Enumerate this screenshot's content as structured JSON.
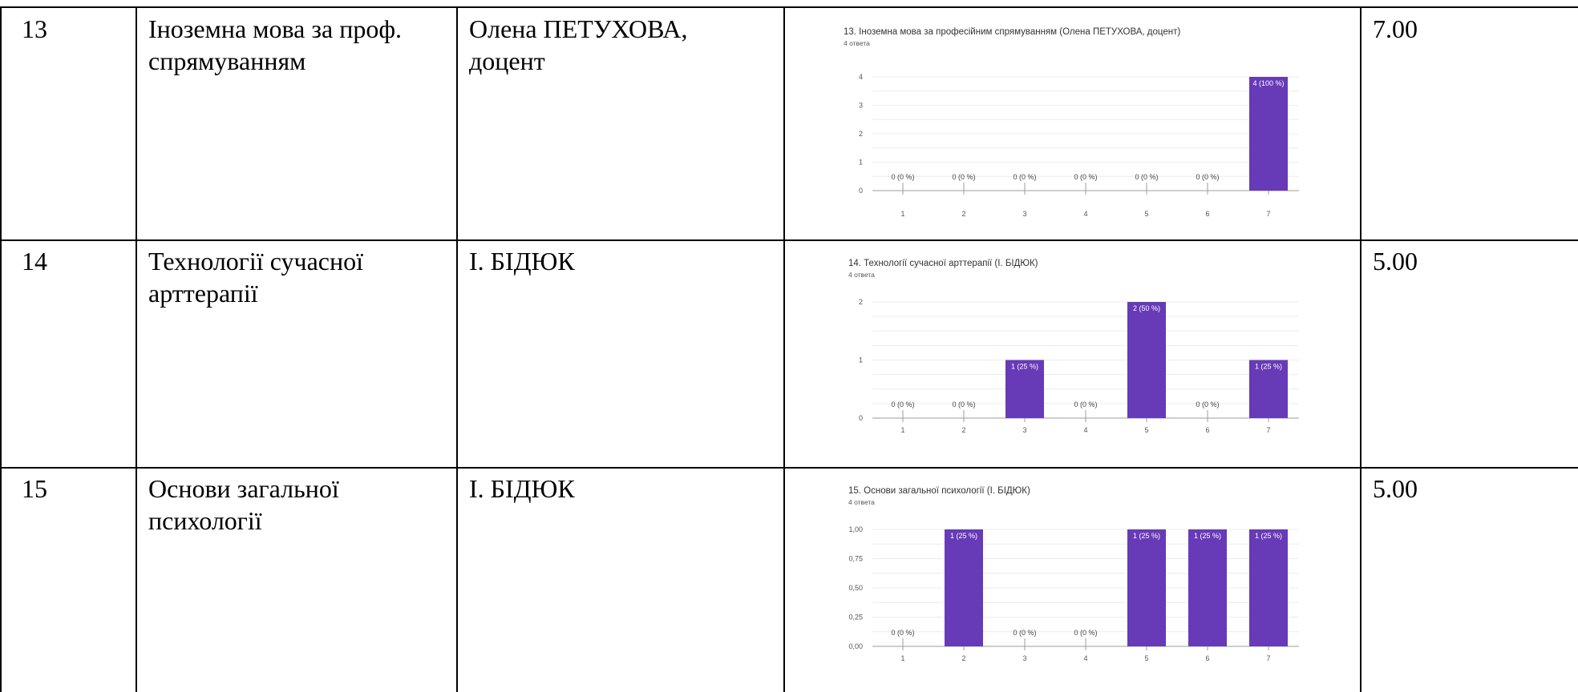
{
  "rows": [
    {
      "number": "13",
      "subject": "Іноземна мова за проф.\nспрямуванням",
      "teacher": "Олена ПЕТУХОВА,\nдоцент",
      "score": "7.00",
      "chart": {
        "title": "13. Іноземна мова за професійним спрямуванням (Олена ПЕТУХОВА, доцент)",
        "subtitle": "4 ответа",
        "yticks": [
          "0",
          "1",
          "2",
          "3",
          "4"
        ]
      }
    },
    {
      "number": "14",
      "subject": "Технології сучасної\nарттерапії",
      "teacher": "І. БІДЮК",
      "score": "5.00",
      "chart": {
        "title": "14. Технології сучасної арттерапії (І. БІДЮК)",
        "subtitle": "4 ответа",
        "yticks": [
          "0",
          "1",
          "2"
        ]
      }
    },
    {
      "number": "15",
      "subject": "Основи загальної\nпсихології",
      "teacher": "І. БІДЮК",
      "score": "5.00",
      "chart": {
        "title": "15. Основи загальної психології (І. БІДЮК)",
        "subtitle": "4 ответа",
        "yticks": [
          "0,00",
          "0,25",
          "0,50",
          "0,75",
          "1,00"
        ]
      }
    }
  ],
  "chart_data": [
    {
      "type": "bar",
      "title": "13. Іноземна мова за професійним спрямуванням (Олена ПЕТУХОВА, доцент)",
      "categories": [
        "1",
        "2",
        "3",
        "4",
        "5",
        "6",
        "7"
      ],
      "values": [
        0,
        0,
        0,
        0,
        0,
        0,
        4
      ],
      "data_labels": [
        "0 (0 %)",
        "0 (0 %)",
        "0 (0 %)",
        "0 (0 %)",
        "0 (0 %)",
        "0 (0 %)",
        "4 (100 %)"
      ],
      "ylim": [
        0,
        4
      ],
      "bar_color": "#673ab7",
      "grid": true
    },
    {
      "type": "bar",
      "title": "14. Технології сучасної арттерапії (І. БІДЮК)",
      "categories": [
        "1",
        "2",
        "3",
        "4",
        "5",
        "6",
        "7"
      ],
      "values": [
        0,
        0,
        1,
        0,
        2,
        0,
        1
      ],
      "data_labels": [
        "0 (0 %)",
        "0 (0 %)",
        "1 (25 %)",
        "0 (0 %)",
        "2 (50 %)",
        "0 (0 %)",
        "1 (25 %)"
      ],
      "ylim": [
        0,
        2
      ],
      "bar_color": "#673ab7",
      "grid": true
    },
    {
      "type": "bar",
      "title": "15. Основи загальної психології (І. БІДЮК)",
      "categories": [
        "1",
        "2",
        "3",
        "4",
        "5",
        "6",
        "7"
      ],
      "values": [
        0,
        1,
        0,
        0,
        1,
        1,
        1
      ],
      "data_labels": [
        "0 (0 %)",
        "1 (25 %)",
        "0 (0 %)",
        "0 (0 %)",
        "1 (25 %)",
        "1 (25 %)",
        "1 (25 %)"
      ],
      "ylim": [
        0,
        1
      ],
      "bar_color": "#673ab7",
      "grid": true
    }
  ]
}
